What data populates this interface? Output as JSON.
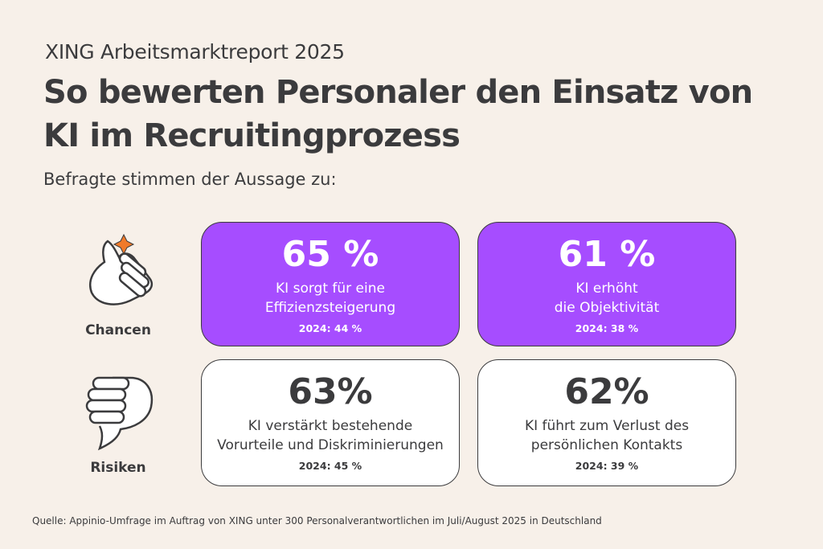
{
  "report_title": "XING Arbeitsmarktreport 2025",
  "headline_line1": "So bewerten Personaler den Einsatz von",
  "headline_line2": "KI im Recruitingprozess",
  "intro": "Befragte stimmen der Aussage zu:",
  "rows": [
    {
      "label": "Chancen",
      "icon": "thumbs-up-icon",
      "cards": [
        {
          "percent": "65 %",
          "line1": "KI sorgt für eine",
          "line2": "Effizienzsteigerung",
          "previous": "2024: 44 %"
        },
        {
          "percent": "61 %",
          "line1": "KI erhöht",
          "line2": "die Objektivität",
          "previous": "2024: 38 %"
        }
      ]
    },
    {
      "label": "Risiken",
      "icon": "thumbs-down-icon",
      "cards": [
        {
          "percent": "63%",
          "line1": "KI verstärkt bestehende",
          "line2": "Vorurteile und Diskriminierungen",
          "previous": "2024: 45 %"
        },
        {
          "percent": "62%",
          "line1": "KI führt zum Verlust des",
          "line2": "persönlichen Kontakts",
          "previous": "2024: 39 %"
        }
      ]
    }
  ],
  "source": "Quelle: Appinio-Umfrage im Auftrag von XING unter 300 Personalverantwortlichen im Juli/August 2025 in Deutschland",
  "colors": {
    "background": "#f7f0e9",
    "chancen_card": "#a64dff",
    "risiken_card": "#ffffff",
    "text": "#3b3b3d",
    "sparkle": "#f07a2a"
  }
}
